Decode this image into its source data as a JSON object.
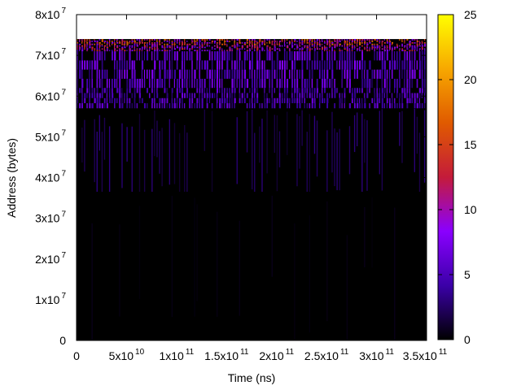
{
  "chart_data": {
    "type": "heatmap",
    "title": "",
    "xlabel": "Time (ns)",
    "ylabel": "Address (bytes)",
    "xlim": [
      0,
      350000000000
    ],
    "ylim": [
      0,
      80000000
    ],
    "x_ticks": [
      {
        "value": 0,
        "base": "0",
        "exp": ""
      },
      {
        "value": 50000000000,
        "base": "5x10",
        "exp": "10"
      },
      {
        "value": 100000000000,
        "base": "1x10",
        "exp": "11"
      },
      {
        "value": 150000000000,
        "base": "1.5x10",
        "exp": "11"
      },
      {
        "value": 200000000000,
        "base": "2x10",
        "exp": "11"
      },
      {
        "value": 250000000000,
        "base": "2.5x10",
        "exp": "11"
      },
      {
        "value": 300000000000,
        "base": "3x10",
        "exp": "11"
      },
      {
        "value": 350000000000,
        "base": "3.5x10",
        "exp": "11"
      }
    ],
    "y_ticks": [
      {
        "value": 0,
        "base": "0",
        "exp": ""
      },
      {
        "value": 10000000,
        "base": "1x10",
        "exp": "7"
      },
      {
        "value": 20000000,
        "base": "2x10",
        "exp": "7"
      },
      {
        "value": 30000000,
        "base": "3x10",
        "exp": "7"
      },
      {
        "value": 40000000,
        "base": "4x10",
        "exp": "7"
      },
      {
        "value": 50000000,
        "base": "5x10",
        "exp": "7"
      },
      {
        "value": 60000000,
        "base": "6x10",
        "exp": "7"
      },
      {
        "value": 70000000,
        "base": "7x10",
        "exp": "7"
      },
      {
        "value": 80000000,
        "base": "8x10",
        "exp": "7"
      }
    ],
    "data_extent": {
      "x": [
        0,
        350000000000
      ],
      "y": [
        0,
        74000000
      ]
    },
    "colorbar": {
      "range": [
        0,
        25
      ],
      "ticks": [
        0,
        5,
        10,
        15,
        20,
        25
      ],
      "palette": [
        "#000000",
        "#3b00a8",
        "#8a00ff",
        "#c41b3a",
        "#e05a00",
        "#f7a800",
        "#ffff00"
      ]
    },
    "bands": [
      {
        "y_from": 0,
        "y_to": 36500000,
        "intensity": 0.3,
        "note": "mostly near-zero with sparse faint vertical streaks"
      },
      {
        "y_from": 36500000,
        "y_to": 57000000,
        "intensity": 1.5,
        "note": "dark with faint purple streaks"
      },
      {
        "y_from": 57000000,
        "y_to": 62000000,
        "intensity": 5,
        "note": "bright purple/violet streaks"
      },
      {
        "y_from": 62000000,
        "y_to": 71000000,
        "intensity": 6,
        "note": "dense purple/violet texture"
      },
      {
        "y_from": 71000000,
        "y_to": 72500000,
        "intensity": 10,
        "note": "red-magenta streaks"
      },
      {
        "y_from": 72500000,
        "y_to": 74000000,
        "intensity": 13,
        "note": "orange-red top stripe"
      }
    ]
  }
}
